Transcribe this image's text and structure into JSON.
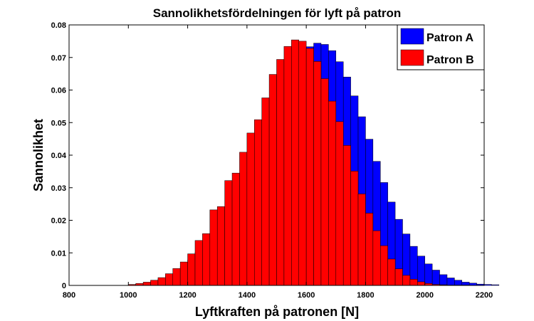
{
  "chart_data": {
    "type": "bar",
    "title": "Sannolikhetsfördelningen för lyft på patron",
    "xlabel": "Lyftkraften på patronen [N]",
    "ylabel": "Sannolikhet",
    "xlim": [
      800,
      2200
    ],
    "ylim": [
      0,
      0.08
    ],
    "xticks": [
      "800",
      "1000",
      "1200",
      "1400",
      "1600",
      "1800",
      "2000",
      "2200"
    ],
    "yticks": [
      "0",
      "0.01",
      "0.02",
      "0.03",
      "0.04",
      "0.05",
      "0.06",
      "0.07",
      "0.08"
    ],
    "legend_position": "top-right",
    "bin_start": 1000,
    "bin_width": 25,
    "series": [
      {
        "name": "Patron A",
        "color": "#0000ff",
        "values": [
          0.0002,
          0.0004,
          0.0007,
          0.0012,
          0.0019,
          0.0029,
          0.0041,
          0.0058,
          0.0078,
          0.0102,
          0.013,
          0.0162,
          0.0196,
          0.0232,
          0.027,
          0.0308,
          0.0347,
          0.0383,
          0.0496,
          0.0535,
          0.0588,
          0.0633,
          0.0675,
          0.0708,
          0.0733,
          0.0744,
          0.074,
          0.0721,
          0.0687,
          0.064,
          0.0582,
          0.0518,
          0.0449,
          0.0381,
          0.0316,
          0.0256,
          0.0203,
          0.0158,
          0.012,
          0.009,
          0.0066,
          0.0047,
          0.0033,
          0.0023,
          0.0016,
          0.001,
          0.0007,
          0.0004,
          0.0003,
          0.0002
        ]
      },
      {
        "name": "Patron B",
        "color": "#ff0000",
        "values": [
          0.0003,
          0.0006,
          0.001,
          0.0016,
          0.0024,
          0.0036,
          0.0052,
          0.0072,
          0.0097,
          0.0138,
          0.0159,
          0.0232,
          0.0242,
          0.0322,
          0.0345,
          0.0409,
          0.0468,
          0.0509,
          0.0576,
          0.0648,
          0.0694,
          0.0734,
          0.0754,
          0.075,
          0.0728,
          0.0688,
          0.0635,
          0.0566,
          0.0503,
          0.043,
          0.0351,
          0.0281,
          0.0222,
          0.0168,
          0.0122,
          0.0081,
          0.0051,
          0.0031,
          0.0019,
          0.0011,
          0.0006,
          0.0003,
          0.0002,
          0.0001,
          0.0001,
          0.0001,
          0.0,
          0.0,
          0.0,
          0.0
        ]
      }
    ]
  }
}
